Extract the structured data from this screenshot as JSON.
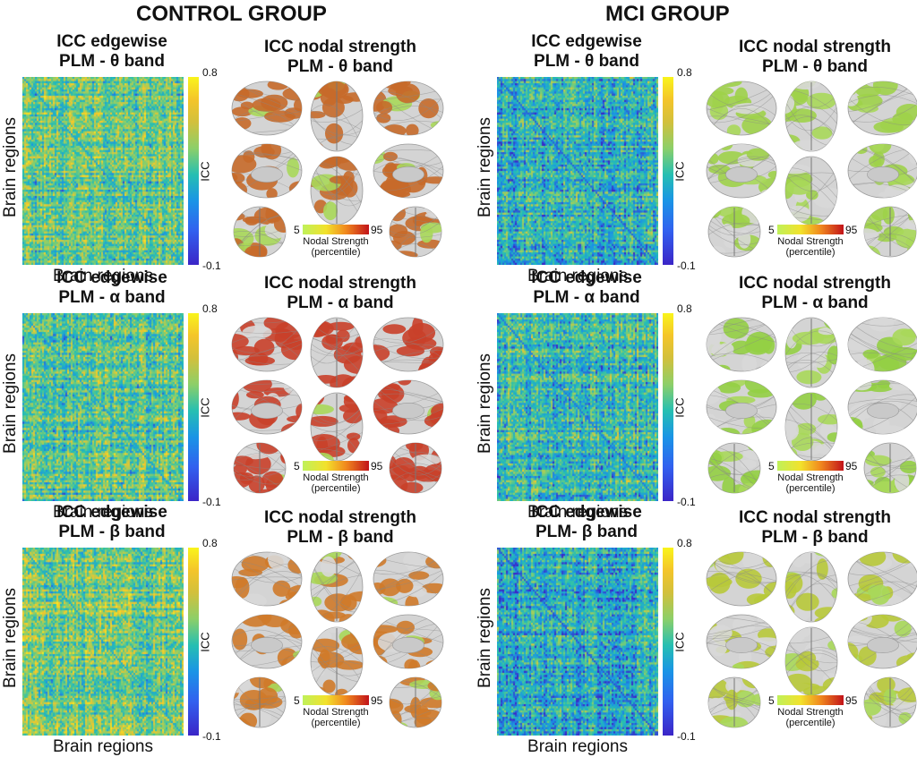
{
  "groups": [
    {
      "title": "CONTROL GROUP",
      "bands": [
        {
          "edgewise": [
            "ICC edgewise",
            "PLM - θ band"
          ],
          "nodal": [
            "ICC nodal strength",
            "PLM - θ band"
          ],
          "brain_color": "#c76a2a",
          "highlight": 0.62
        },
        {
          "edgewise": [
            "ICC edgewise",
            "PLM - α band"
          ],
          "nodal": [
            "ICC nodal strength",
            "PLM - α band"
          ],
          "brain_color": "#c9402a",
          "highlight": 0.7
        },
        {
          "edgewise": [
            "ICC edgewise",
            "PLM - β band"
          ],
          "nodal": [
            "ICC nodal strength",
            "PLM - β band"
          ],
          "brain_color": "#cf7a2a",
          "highlight": 0.58
        }
      ]
    },
    {
      "title": "MCI GROUP",
      "bands": [
        {
          "edgewise": [
            "ICC edgewise",
            "PLM - θ band"
          ],
          "nodal": [
            "ICC nodal strength",
            "PLM - θ band"
          ],
          "brain_color": "#9ed14a",
          "highlight": 0.22
        },
        {
          "edgewise": [
            "ICC edgewise",
            "PLM - α band"
          ],
          "nodal": [
            "ICC nodal strength",
            "PLM - α band"
          ],
          "brain_color": "#93cf44",
          "highlight": 0.3
        },
        {
          "edgewise": [
            "ICC edgewise",
            "PLM- β band"
          ],
          "nodal": [
            "ICC nodal strength",
            "PLM - β band"
          ],
          "brain_color": "#b8c93a",
          "highlight": 0.33
        }
      ]
    }
  ],
  "axes": {
    "ylabel": "Brain regions",
    "xlabel": "Brain regions"
  },
  "colorbar": {
    "label": "ICC",
    "max": "0.8",
    "min": "-0.1",
    "colors": [
      "#3b25c7",
      "#1a94e6",
      "#26bfb2",
      "#8ccf69",
      "#f4c52a",
      "#f9f41b"
    ]
  },
  "nodal_bar": {
    "min": "5",
    "max": "95",
    "label_line1": "Nodal Strength",
    "label_line2": "(percentile)"
  },
  "matrix_bias": [
    [
      0.52,
      0.5,
      0.55
    ],
    [
      0.36,
      0.4,
      0.34
    ]
  ]
}
